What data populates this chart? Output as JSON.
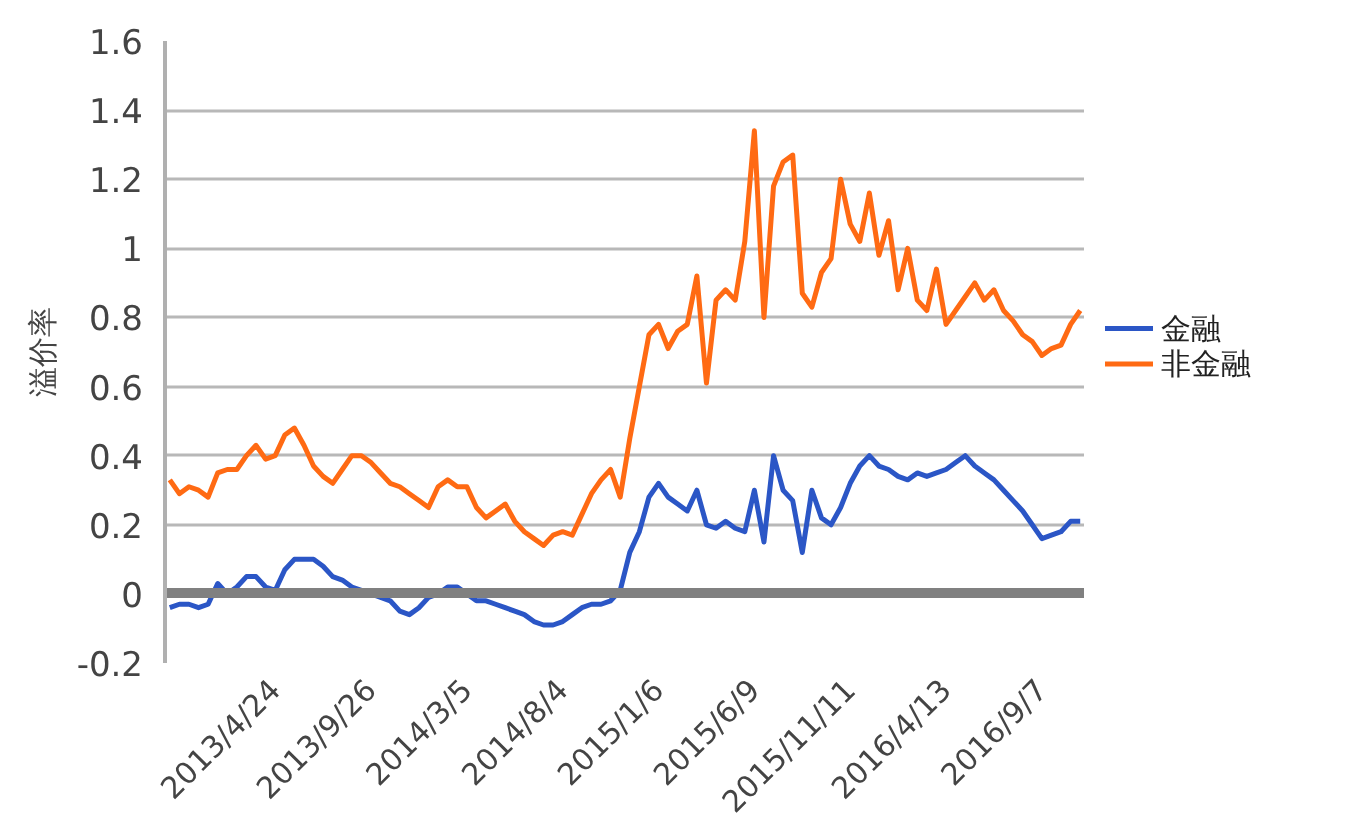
{
  "chart_data": {
    "type": "line",
    "ylabel": "溢价率",
    "categories": [
      null,
      null,
      null,
      null,
      null,
      null,
      null,
      null,
      null,
      null,
      null,
      "2013/4/24",
      null,
      null,
      null,
      null,
      null,
      null,
      null,
      null,
      null,
      "2013/9/26",
      null,
      null,
      null,
      null,
      null,
      null,
      null,
      null,
      null,
      "2014/3/5",
      null,
      null,
      null,
      null,
      null,
      null,
      null,
      null,
      null,
      "2014/8/4",
      null,
      null,
      null,
      null,
      null,
      null,
      null,
      null,
      null,
      "2015/1/6",
      null,
      null,
      null,
      null,
      null,
      null,
      null,
      null,
      null,
      "2015/6/9",
      null,
      null,
      null,
      null,
      null,
      null,
      null,
      null,
      null,
      "2015/11/11",
      null,
      null,
      null,
      null,
      null,
      null,
      null,
      null,
      null,
      "2016/4/13",
      null,
      null,
      null,
      null,
      null,
      null,
      null,
      null,
      null,
      "2016/9/7",
      null,
      null,
      null,
      null
    ],
    "series": [
      {
        "name": "金融",
        "color": "#2b56c6",
        "values": [
          -0.04,
          -0.03,
          -0.03,
          -0.04,
          -0.03,
          0.03,
          0.0,
          0.02,
          0.05,
          0.05,
          0.02,
          0.01,
          0.07,
          0.1,
          0.1,
          0.1,
          0.08,
          0.05,
          0.04,
          0.02,
          0.01,
          0.0,
          -0.01,
          -0.02,
          -0.05,
          -0.06,
          -0.04,
          -0.01,
          0.0,
          0.02,
          0.02,
          0.0,
          -0.02,
          -0.02,
          -0.03,
          -0.04,
          -0.05,
          -0.06,
          -0.08,
          -0.09,
          -0.09,
          -0.08,
          -0.06,
          -0.04,
          -0.03,
          -0.03,
          -0.02,
          0.01,
          0.12,
          0.18,
          0.28,
          0.32,
          0.28,
          0.26,
          0.24,
          0.3,
          0.2,
          0.19,
          0.21,
          0.19,
          0.18,
          0.3,
          0.15,
          0.4,
          0.3,
          0.27,
          0.12,
          0.3,
          0.22,
          0.2,
          0.25,
          0.32,
          0.37,
          0.4,
          0.37,
          0.36,
          0.34,
          0.33,
          0.35,
          0.34,
          0.35,
          0.36,
          0.38,
          0.4,
          0.37,
          0.35,
          0.33,
          0.3,
          0.27,
          0.24,
          0.2,
          0.16,
          0.17,
          0.18,
          0.21,
          0.21
        ]
      },
      {
        "name": "非金融",
        "color": "#ff6a13",
        "values": [
          0.33,
          0.29,
          0.31,
          0.3,
          0.28,
          0.35,
          0.36,
          0.36,
          0.4,
          0.43,
          0.39,
          0.4,
          0.46,
          0.48,
          0.43,
          0.37,
          0.34,
          0.32,
          0.36,
          0.4,
          0.4,
          0.38,
          0.35,
          0.32,
          0.31,
          0.29,
          0.27,
          0.25,
          0.31,
          0.33,
          0.31,
          0.31,
          0.25,
          0.22,
          0.24,
          0.26,
          0.21,
          0.18,
          0.16,
          0.14,
          0.17,
          0.18,
          0.17,
          0.23,
          0.29,
          0.33,
          0.36,
          0.28,
          0.45,
          0.6,
          0.75,
          0.78,
          0.71,
          0.76,
          0.78,
          0.92,
          0.61,
          0.85,
          0.88,
          0.85,
          1.02,
          1.34,
          0.8,
          1.18,
          1.25,
          1.27,
          0.87,
          0.83,
          0.93,
          0.97,
          1.2,
          1.07,
          1.02,
          1.16,
          0.98,
          1.08,
          0.88,
          1.0,
          0.85,
          0.82,
          0.94,
          0.78,
          0.82,
          0.86,
          0.9,
          0.85,
          0.88,
          0.82,
          0.79,
          0.75,
          0.73,
          0.69,
          0.71,
          0.72,
          0.78,
          0.82
        ]
      }
    ],
    "ylim": [
      -0.2,
      1.6
    ],
    "yticks": [
      -0.2,
      0,
      0.2,
      0.4,
      0.6,
      0.8,
      1,
      1.2,
      1.4,
      1.6
    ],
    "grid": "y",
    "legend": "right",
    "line_style": "solid",
    "marker": "none"
  }
}
